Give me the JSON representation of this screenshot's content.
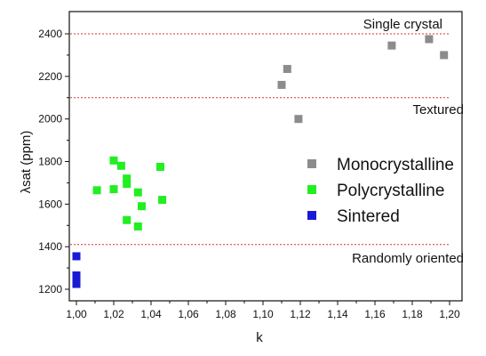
{
  "chart_data": {
    "type": "scatter",
    "xlabel": "k",
    "ylabel": "λsat (ppm)",
    "xlim": [
      1.0,
      1.2
    ],
    "ylim": [
      1150,
      2450
    ],
    "x_ticks": [
      "1,00",
      "1,02",
      "1,04",
      "1,06",
      "1,08",
      "1,10",
      "1,12",
      "1,14",
      "1,16",
      "1,18",
      "1,20"
    ],
    "x_tick_values": [
      1.0,
      1.02,
      1.04,
      1.06,
      1.08,
      1.1,
      1.12,
      1.14,
      1.16,
      1.18,
      1.2
    ],
    "y_ticks": [
      "1200",
      "1400",
      "1600",
      "1800",
      "2000",
      "2200",
      "2400"
    ],
    "y_tick_values": [
      1200,
      1400,
      1600,
      1800,
      2000,
      2200,
      2400
    ],
    "grid": false,
    "legend_position": "right",
    "series": [
      {
        "name": "Monocrystalline",
        "color": "#8c8c8c",
        "points": [
          {
            "x": 1.11,
            "y": 2160
          },
          {
            "x": 1.113,
            "y": 2235
          },
          {
            "x": 1.119,
            "y": 2000
          },
          {
            "x": 1.169,
            "y": 2345
          },
          {
            "x": 1.189,
            "y": 2375
          },
          {
            "x": 1.197,
            "y": 2300
          }
        ]
      },
      {
        "name": "Polycrystalline",
        "color": "#22ee22",
        "points": [
          {
            "x": 1.011,
            "y": 1665
          },
          {
            "x": 1.02,
            "y": 1670
          },
          {
            "x": 1.02,
            "y": 1805
          },
          {
            "x": 1.024,
            "y": 1780
          },
          {
            "x": 1.027,
            "y": 1720
          },
          {
            "x": 1.027,
            "y": 1695
          },
          {
            "x": 1.027,
            "y": 1525
          },
          {
            "x": 1.033,
            "y": 1655
          },
          {
            "x": 1.035,
            "y": 1590
          },
          {
            "x": 1.033,
            "y": 1495
          },
          {
            "x": 1.045,
            "y": 1775
          },
          {
            "x": 1.046,
            "y": 1620
          }
        ]
      },
      {
        "name": "Sintered",
        "color": "#1a1ad6",
        "points": [
          {
            "x": 1.0,
            "y": 1355
          },
          {
            "x": 1.0,
            "y": 1265
          },
          {
            "x": 1.0,
            "y": 1250
          },
          {
            "x": 1.0,
            "y": 1240
          },
          {
            "x": 1.0,
            "y": 1225
          }
        ]
      }
    ],
    "reference_lines": [
      {
        "y": 2400,
        "label": "Single crystal",
        "color": "#dd3333",
        "style": "dotted"
      },
      {
        "y": 2100,
        "label": "Textured",
        "color": "#dd3333",
        "style": "dotted"
      },
      {
        "y": 1410,
        "label": "Randomly oriented",
        "color": "#dd3333",
        "style": "dotted"
      }
    ]
  }
}
